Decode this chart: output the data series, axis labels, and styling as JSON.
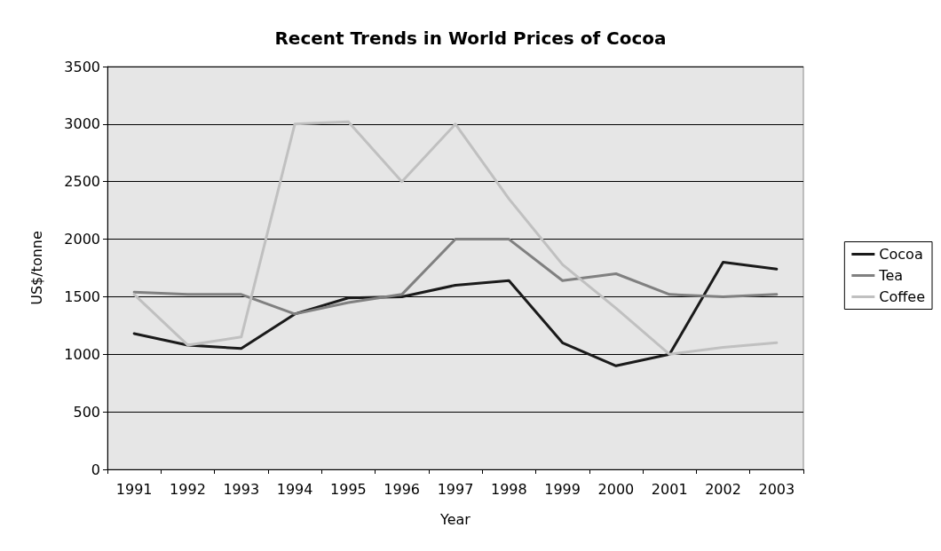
{
  "chart_data": {
    "type": "line",
    "title": "Recent Trends in World Prices of Cocoa",
    "xlabel": "Year",
    "ylabel": "US$/tonne",
    "categories": [
      "1991",
      "1992",
      "1993",
      "1994",
      "1995",
      "1996",
      "1997",
      "1998",
      "1999",
      "2000",
      "2001",
      "2002",
      "2003"
    ],
    "series": [
      {
        "name": "Cocoa",
        "color": "#1a1a1a",
        "values": [
          1180,
          1080,
          1050,
          1350,
          1490,
          1500,
          1600,
          1640,
          1100,
          900,
          1000,
          1800,
          1740
        ]
      },
      {
        "name": "Tea",
        "color": "#808080",
        "values": [
          1540,
          1520,
          1520,
          1350,
          1450,
          1520,
          2000,
          2000,
          1640,
          1700,
          1520,
          1500,
          1520
        ]
      },
      {
        "name": "Coffee",
        "color": "#c0c0c0",
        "values": [
          1520,
          1080,
          1150,
          3000,
          3020,
          2500,
          3000,
          2350,
          1780,
          1400,
          1000,
          1060,
          1100
        ]
      }
    ],
    "ylim": [
      0,
      3500
    ],
    "yticks": [
      0,
      500,
      1000,
      1500,
      2000,
      2500,
      3000,
      3500
    ],
    "grid": "y",
    "legend": "right",
    "marker": "none",
    "line_style": "solid"
  }
}
